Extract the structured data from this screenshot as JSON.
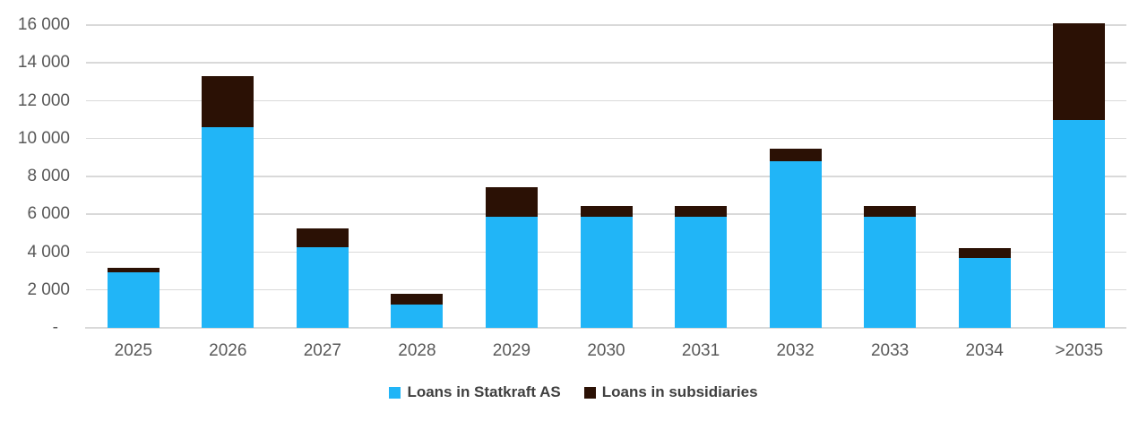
{
  "chart_data": {
    "type": "bar",
    "stacked": true,
    "title": "",
    "xlabel": "",
    "ylabel": "",
    "categories": [
      "2025",
      "2026",
      "2027",
      "2028",
      "2029",
      "2030",
      "2031",
      "2032",
      "2033",
      "2034",
      ">2035"
    ],
    "series": [
      {
        "name": "Loans in Statkraft AS",
        "color": "#21B5F7",
        "values": [
          2950,
          10600,
          4250,
          1250,
          5850,
          5850,
          5850,
          8800,
          5850,
          3700,
          11000
        ]
      },
      {
        "name": "Loans in subsidiaries",
        "color": "#2B1105",
        "values": [
          200,
          2700,
          1000,
          550,
          1600,
          570,
          570,
          650,
          570,
          500,
          5100
        ]
      }
    ],
    "stacked_totals": [
      3150,
      13300,
      5250,
      1800,
      7450,
      6420,
      6420,
      9450,
      6420,
      4200,
      16100
    ],
    "y_axis": {
      "min": 0,
      "max": 16000,
      "tick_values": [
        0,
        2000,
        4000,
        6000,
        8000,
        10000,
        12000,
        14000,
        16000
      ],
      "tick_labels": [
        "-",
        "2 000",
        "4 000",
        "6 000",
        "8 000",
        "10 000",
        "12 000",
        "14 000",
        "16 000"
      ]
    },
    "grid": "horizontal",
    "legend_position": "bottom"
  },
  "colors": {
    "background": "#FFFFFF",
    "gridline": "#D9D9D9",
    "axis_line": "#D9D9D9",
    "tick_label": "#595959",
    "legend_text": "#3F3F3F",
    "series_statkraft": "#21B5F7",
    "series_subsidiaries": "#2B1105"
  }
}
